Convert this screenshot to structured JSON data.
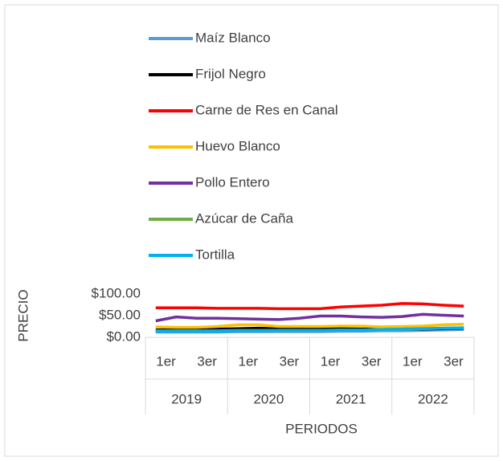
{
  "chart_data": {
    "type": "line",
    "y_label": "PRECIO",
    "x_label": "PERIODOS",
    "categories": [
      "1er",
      null,
      "3er",
      null,
      "1er",
      null,
      "3er",
      null,
      "1er",
      null,
      "3er",
      null,
      "1er",
      null,
      "3er",
      null
    ],
    "x_groups": [
      "2019",
      "2020",
      "2021",
      "2022"
    ],
    "series": [
      {
        "name": "Maíz Blanco",
        "color": "#5b9bd5",
        "values": [
          12,
          12,
          12,
          12,
          13,
          13,
          13,
          13,
          13,
          14,
          14,
          15,
          15,
          16,
          17,
          18
        ]
      },
      {
        "name": "Frijol Negro",
        "color": "#000000",
        "values": [
          17,
          18,
          18,
          19,
          20,
          21,
          20,
          20,
          20,
          20,
          19,
          19,
          19,
          19,
          20,
          21
        ]
      },
      {
        "name": "Carne de Res en Canal",
        "color": "#ff0000",
        "values": [
          68,
          68,
          68,
          67,
          67,
          67,
          66,
          66,
          66,
          70,
          72,
          74,
          78,
          77,
          74,
          72
        ]
      },
      {
        "name": "Huevo Blanco",
        "color": "#ffc000",
        "values": [
          24,
          23,
          23,
          25,
          29,
          29,
          25,
          25,
          25,
          26,
          26,
          24,
          25,
          26,
          29,
          30
        ]
      },
      {
        "name": "Pollo Entero",
        "color": "#7030a0",
        "values": [
          38,
          47,
          44,
          44,
          43,
          42,
          41,
          44,
          49,
          49,
          47,
          46,
          48,
          53,
          51,
          49
        ]
      },
      {
        "name": "Azúcar de Caña",
        "color": "#70ad47",
        "values": [
          15,
          15,
          15,
          15,
          16,
          16,
          16,
          16,
          16,
          17,
          17,
          18,
          19,
          20,
          21,
          22
        ]
      },
      {
        "name": "Tortilla",
        "color": "#00b0f0",
        "values": [
          14,
          14,
          14,
          14,
          15,
          15,
          16,
          16,
          16,
          17,
          17,
          18,
          19,
          20,
          21,
          22
        ]
      }
    ],
    "ylim": [
      0,
      100
    ],
    "yticks": [
      {
        "value": 0,
        "label": "$0.00"
      },
      {
        "value": 50,
        "label": "$50.00"
      },
      {
        "value": 100,
        "label": "$100.00"
      }
    ],
    "grid": false,
    "legend": "top"
  }
}
